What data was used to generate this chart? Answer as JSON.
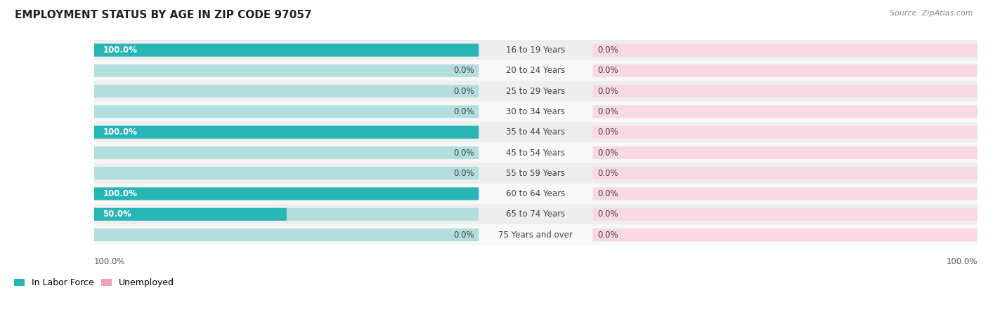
{
  "title": "EMPLOYMENT STATUS BY AGE IN ZIP CODE 97057",
  "source": "Source: ZipAtlas.com",
  "categories": [
    "16 to 19 Years",
    "20 to 24 Years",
    "25 to 29 Years",
    "30 to 34 Years",
    "35 to 44 Years",
    "45 to 54 Years",
    "55 to 59 Years",
    "60 to 64 Years",
    "65 to 74 Years",
    "75 Years and over"
  ],
  "in_labor_force": [
    100.0,
    0.0,
    0.0,
    0.0,
    100.0,
    0.0,
    0.0,
    100.0,
    50.0,
    0.0
  ],
  "unemployed": [
    0.0,
    0.0,
    0.0,
    0.0,
    0.0,
    0.0,
    0.0,
    0.0,
    0.0,
    0.0
  ],
  "labor_color": "#28b5b5",
  "labor_bg_color": "#b2dede",
  "unemployed_color": "#f0a0b8",
  "unemployed_bg_color": "#f8d8e4",
  "row_bg_color_alt": "#eeeeee",
  "row_bg_color_norm": "#f8f8f8",
  "white_label_color": "#ffffff",
  "dark_label_color": "#444444",
  "axis_label_left": "100.0%",
  "axis_label_right": "100.0%",
  "legend_labor": "In Labor Force",
  "legend_unemployed": "Unemployed",
  "title_fontsize": 11,
  "source_fontsize": 8,
  "label_fontsize": 8.5,
  "category_fontsize": 8.5,
  "axis_fontsize": 8.5,
  "max_value": 100.0
}
